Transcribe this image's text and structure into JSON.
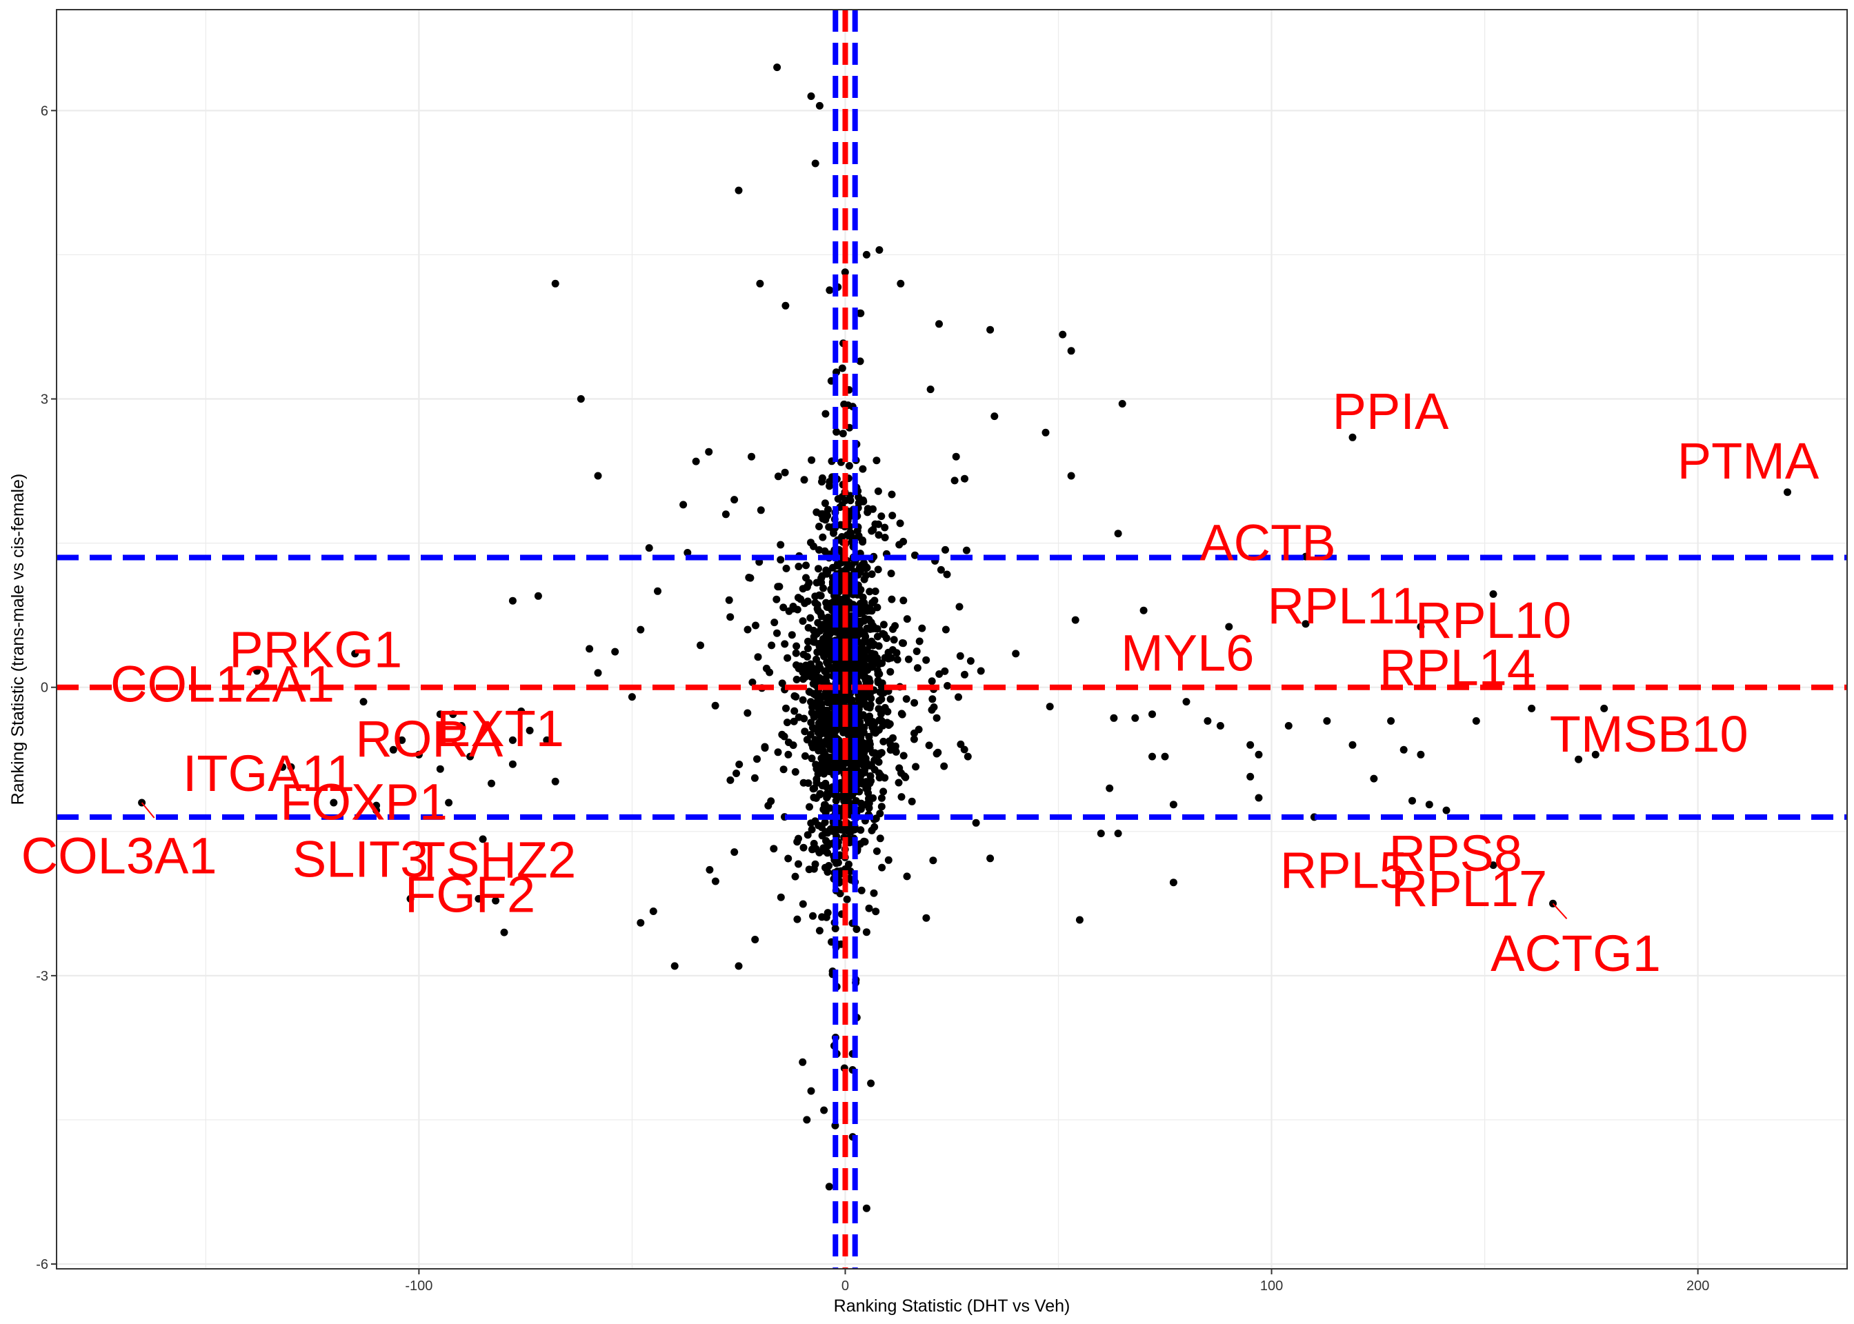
{
  "chart_data": {
    "type": "scatter",
    "title": "",
    "xlabel": "Ranking Statistic (DHT vs Veh)",
    "ylabel": "Ranking Statistic (trans-male vs cis-female)",
    "xlim": [
      -185,
      235
    ],
    "ylim": [
      -6.05,
      7.05
    ],
    "x_ticks": [
      -100,
      0,
      100,
      200
    ],
    "x_tick_labels": [
      "-100",
      "0",
      "100",
      "200"
    ],
    "y_ticks": [
      -6,
      -3,
      0,
      3,
      6
    ],
    "y_tick_labels": [
      "-6",
      "-3",
      "0",
      "3",
      "6"
    ],
    "grid": true,
    "legend": "none",
    "colors": {
      "points": "#000000",
      "labels": "#ff0000",
      "threshold_blue": "#0000ff",
      "threshold_red": "#ff0000",
      "grid": "#ebebeb",
      "panel_border": "#333333"
    },
    "reference_lines": {
      "horizontal_blue": [
        1.35,
        -1.35
      ],
      "horizontal_red": [
        0
      ],
      "vertical_blue": [
        -2.3,
        2.3
      ],
      "vertical_red": [
        0
      ]
    },
    "labeled_points": [
      {
        "gene": "PPIA",
        "x": 119,
        "y": 2.6
      },
      {
        "gene": "PTMA",
        "x": 221,
        "y": 2.03
      },
      {
        "gene": "ACTB",
        "x": 108,
        "y": 1.36
      },
      {
        "gene": "RPL10",
        "x": 152,
        "y": 0.97
      },
      {
        "gene": "RPL11",
        "x": 108,
        "y": 0.66
      },
      {
        "gene": "MYL6",
        "x": 90,
        "y": 0.63
      },
      {
        "gene": "RPL14",
        "x": 135,
        "y": 0.63
      },
      {
        "gene": "TMSB10",
        "x": 178,
        "y": -0.22
      },
      {
        "gene": "PRKG1",
        "x": -115,
        "y": 0.35
      },
      {
        "gene": "COL12A1",
        "x": -138,
        "y": 0.17
      },
      {
        "gene": "RORA",
        "x": -95,
        "y": -0.28
      },
      {
        "gene": "ITGA11",
        "x": -132,
        "y": -0.83
      },
      {
        "gene": "EXT1",
        "x": -78,
        "y": -0.55
      },
      {
        "gene": "FOXP1",
        "x": -110,
        "y": -1.23
      },
      {
        "gene": "COL3A1",
        "x": -165,
        "y": -1.2
      },
      {
        "gene": "SLIT3",
        "x": -110,
        "y": -1.28
      },
      {
        "gene": "TSHZ2",
        "x": -85,
        "y": -1.58
      },
      {
        "gene": "FGF2",
        "x": -82,
        "y": -2.22
      },
      {
        "gene": "RPL5",
        "x": 110,
        "y": -1.35
      },
      {
        "gene": "RPS8",
        "x": 137,
        "y": -1.22
      },
      {
        "gene": "RPL17",
        "x": 152,
        "y": -1.85
      },
      {
        "gene": "ACTG1",
        "x": 166,
        "y": -2.25
      }
    ],
    "outlier_points": [
      {
        "x": -16,
        "y": 6.45
      },
      {
        "x": -25,
        "y": 5.17
      },
      {
        "x": -68,
        "y": 4.2
      },
      {
        "x": -62,
        "y": 3.0
      },
      {
        "x": -58,
        "y": 2.2
      },
      {
        "x": -8,
        "y": 6.15
      },
      {
        "x": -6,
        "y": 6.05
      },
      {
        "x": -7,
        "y": 5.45
      },
      {
        "x": 5,
        "y": 4.5
      },
      {
        "x": 8,
        "y": 4.55
      },
      {
        "x": -20,
        "y": 4.2
      },
      {
        "x": -14,
        "y": 3.97
      },
      {
        "x": 13,
        "y": 4.2
      },
      {
        "x": 22,
        "y": 3.78
      },
      {
        "x": 34,
        "y": 3.72
      },
      {
        "x": 51,
        "y": 3.67
      },
      {
        "x": 53,
        "y": 3.5
      },
      {
        "x": 65,
        "y": 2.95
      },
      {
        "x": 47,
        "y": 2.65
      },
      {
        "x": 35,
        "y": 2.82
      },
      {
        "x": 20,
        "y": 3.1
      },
      {
        "x": 26,
        "y": 2.4
      },
      {
        "x": 28,
        "y": 2.17
      },
      {
        "x": 53,
        "y": 2.2
      },
      {
        "x": 64,
        "y": 1.6
      },
      {
        "x": 70,
        "y": 0.8
      },
      {
        "x": 54,
        "y": 0.7
      },
      {
        "x": 40,
        "y": 0.35
      },
      {
        "x": 48,
        "y": -0.2
      },
      {
        "x": 63,
        "y": -0.32
      },
      {
        "x": 68,
        "y": -0.32
      },
      {
        "x": 72,
        "y": -0.28
      },
      {
        "x": 80,
        "y": -0.15
      },
      {
        "x": 85,
        "y": -0.35
      },
      {
        "x": 88,
        "y": -0.4
      },
      {
        "x": 95,
        "y": -0.6
      },
      {
        "x": 97,
        "y": -0.7
      },
      {
        "x": 104,
        "y": -0.4
      },
      {
        "x": 113,
        "y": -0.35
      },
      {
        "x": 119,
        "y": -0.6
      },
      {
        "x": 128,
        "y": -0.35
      },
      {
        "x": 131,
        "y": -0.65
      },
      {
        "x": 135,
        "y": -0.7
      },
      {
        "x": 148,
        "y": -0.35
      },
      {
        "x": 161,
        "y": -0.22
      },
      {
        "x": 172,
        "y": -0.75
      },
      {
        "x": 176,
        "y": -0.7
      },
      {
        "x": 124,
        "y": -0.95
      },
      {
        "x": 95,
        "y": -0.93
      },
      {
        "x": 75,
        "y": -0.72
      },
      {
        "x": 62,
        "y": -1.05
      },
      {
        "x": 77,
        "y": -1.22
      },
      {
        "x": 97,
        "y": -1.15
      },
      {
        "x": 133,
        "y": -1.18
      },
      {
        "x": 141,
        "y": -1.28
      },
      {
        "x": 64,
        "y": -1.52
      },
      {
        "x": 77,
        "y": -2.03
      },
      {
        "x": 55,
        "y": -2.42
      },
      {
        "x": 34,
        "y": -1.78
      },
      {
        "x": 19,
        "y": -2.4
      },
      {
        "x": -40,
        "y": -2.9
      },
      {
        "x": -25,
        "y": -2.9
      },
      {
        "x": -48,
        "y": -2.45
      },
      {
        "x": -45,
        "y": -2.33
      },
      {
        "x": -5,
        "y": -4.4
      },
      {
        "x": -9,
        "y": -4.5
      },
      {
        "x": 5,
        "y": -5.42
      },
      {
        "x": 6,
        "y": -4.12
      },
      {
        "x": -10,
        "y": -3.9
      },
      {
        "x": -8,
        "y": -4.2
      },
      {
        "x": -102,
        "y": -2.2
      },
      {
        "x": -86,
        "y": -2.2
      },
      {
        "x": -80,
        "y": -2.55
      },
      {
        "x": -130,
        "y": -0.83
      },
      {
        "x": -120,
        "y": -1.2
      },
      {
        "x": -104,
        "y": -0.55
      },
      {
        "x": -100,
        "y": -0.7
      },
      {
        "x": -106,
        "y": -0.65
      },
      {
        "x": -90,
        "y": -0.4
      },
      {
        "x": -92,
        "y": -0.28
      },
      {
        "x": -88,
        "y": -0.72
      },
      {
        "x": -83,
        "y": -1.0
      },
      {
        "x": -78,
        "y": -0.8
      },
      {
        "x": -76,
        "y": -0.25
      },
      {
        "x": -74,
        "y": -0.45
      },
      {
        "x": -70,
        "y": -0.55
      },
      {
        "x": -68,
        "y": -0.98
      },
      {
        "x": -95,
        "y": -0.85
      },
      {
        "x": -93,
        "y": -1.2
      },
      {
        "x": -78,
        "y": 0.9
      },
      {
        "x": -72,
        "y": 0.95
      },
      {
        "x": -60,
        "y": 0.4
      },
      {
        "x": -58,
        "y": 0.15
      },
      {
        "x": -54,
        "y": 0.37
      },
      {
        "x": -50,
        "y": -0.1
      },
      {
        "x": -48,
        "y": 0.6
      },
      {
        "x": -46,
        "y": 1.45
      },
      {
        "x": -44,
        "y": 1.0
      },
      {
        "x": -38,
        "y": 1.9
      },
      {
        "x": -37,
        "y": 1.4
      },
      {
        "x": -35,
        "y": 2.35
      },
      {
        "x": -32,
        "y": 2.45
      },
      {
        "x": -28,
        "y": 1.8
      },
      {
        "x": -22,
        "y": 2.4
      },
      {
        "x": -113,
        "y": -0.15
      },
      {
        "x": 60,
        "y": -1.52
      },
      {
        "x": 72,
        "y": -0.72
      }
    ],
    "cluster": {
      "n": 1600,
      "x_sd": 4.2,
      "y_sd": 0.95,
      "seed": 17
    }
  }
}
